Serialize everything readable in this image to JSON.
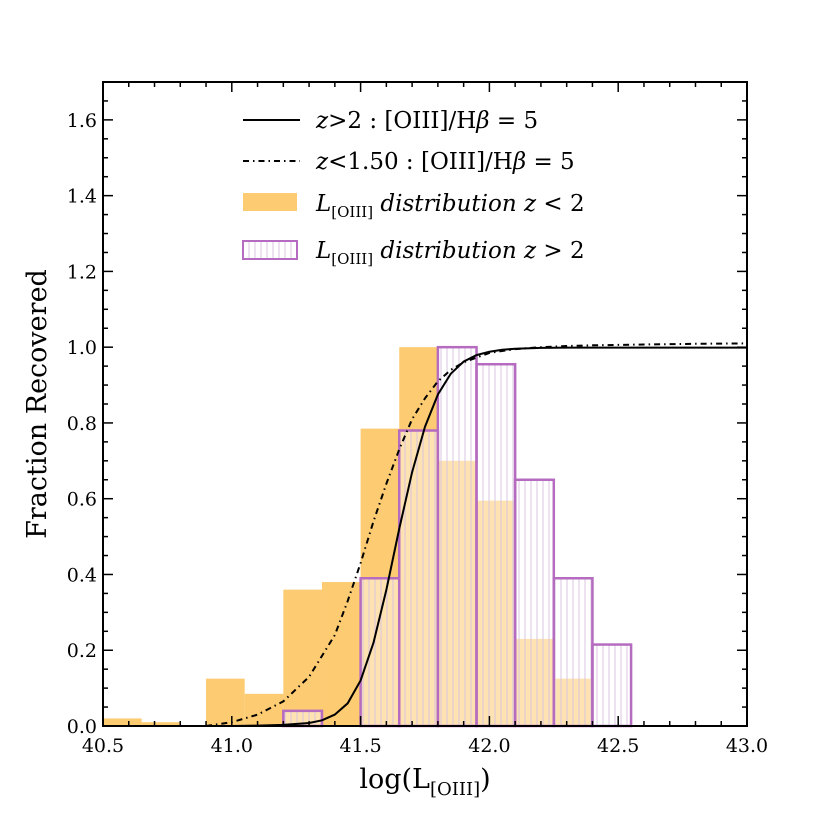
{
  "chart_data": {
    "type": "histogram+line",
    "title": "",
    "xlabel": "log(L",
    "xlabel_sub": "[OIII]",
    "xlabel_close": ")",
    "ylabel": "Fraction Recovered",
    "xlim": [
      40.5,
      43.0
    ],
    "ylim": [
      0.0,
      1.7
    ],
    "xticks": [
      40.5,
      41.0,
      41.5,
      42.0,
      42.5,
      43.0
    ],
    "xtick_labels": [
      "40.5",
      "41.0",
      "41.5",
      "42.0",
      "42.5",
      "43.0"
    ],
    "yticks": [
      0.0,
      0.2,
      0.4,
      0.6,
      0.8,
      1.0,
      1.2,
      1.4,
      1.6
    ],
    "ytick_labels": [
      "0.0",
      "0.2",
      "0.4",
      "0.6",
      "0.8",
      "1.0",
      "1.2",
      "1.4",
      "1.6"
    ],
    "bin_edges": [
      40.5,
      40.65,
      40.8,
      40.9,
      41.05,
      41.2,
      41.35,
      41.5,
      41.65,
      41.8,
      41.95,
      42.1,
      42.25,
      42.4,
      42.55
    ],
    "series": [
      {
        "name": "L_[OIII] distribution z < 2",
        "kind": "histogram",
        "color": "#fdcb71",
        "values": [
          0.02,
          0.01,
          0.0,
          0.125,
          0.085,
          0.36,
          0.38,
          0.785,
          1.0,
          0.7,
          0.595,
          0.23,
          0.125,
          0.0
        ]
      },
      {
        "name": "L_[OIII] distribution z > 2",
        "kind": "histogram",
        "edge_color": "#b56bbf",
        "values": [
          0.0,
          0.0,
          0.0,
          0.0,
          0.0,
          0.04,
          0.0,
          0.39,
          0.78,
          1.0,
          0.955,
          0.65,
          0.39,
          0.215
        ]
      },
      {
        "name": "z>2: [OIII]/Hβ = 5",
        "kind": "line",
        "style": "solid",
        "x": [
          40.9,
          41.0,
          41.1,
          41.2,
          41.3,
          41.35,
          41.4,
          41.45,
          41.5,
          41.55,
          41.6,
          41.65,
          41.7,
          41.75,
          41.8,
          41.85,
          41.9,
          41.95,
          42.0,
          42.05,
          42.1,
          42.2,
          42.3,
          42.4,
          42.6,
          42.8,
          43.0
        ],
        "y": [
          0.0,
          0.0,
          0.001,
          0.003,
          0.008,
          0.015,
          0.03,
          0.06,
          0.12,
          0.22,
          0.36,
          0.52,
          0.67,
          0.79,
          0.875,
          0.93,
          0.962,
          0.979,
          0.988,
          0.993,
          0.996,
          0.998,
          0.999,
          0.999,
          0.999,
          0.999,
          0.999
        ]
      },
      {
        "name": "z<1.50: [OIII]/Hβ = 5",
        "kind": "line",
        "style": "dashdot",
        "x": [
          40.9,
          41.0,
          41.1,
          41.2,
          41.3,
          41.4,
          41.45,
          41.5,
          41.55,
          41.6,
          41.65,
          41.7,
          41.75,
          41.8,
          41.85,
          41.9,
          42.0,
          42.1,
          42.2,
          42.3,
          42.4,
          42.6,
          42.8,
          43.0
        ],
        "y": [
          0.0,
          0.01,
          0.03,
          0.065,
          0.13,
          0.24,
          0.33,
          0.43,
          0.54,
          0.64,
          0.73,
          0.81,
          0.865,
          0.91,
          0.94,
          0.96,
          0.985,
          0.995,
          1.0,
          1.003,
          1.005,
          1.007,
          1.009,
          1.01
        ]
      }
    ],
    "legend": {
      "placement": "top-center",
      "entries": [
        {
          "prefix": "z",
          "middle": ">2 : [OIII]/H",
          "greek": "β",
          "suffix": " = 5"
        },
        {
          "prefix": "z",
          "middle": "<1.50 : [OIII]/H",
          "greek": "β",
          "suffix": " = 5"
        },
        {
          "prefix": "L",
          "sub": "[OIII]",
          "middle": " distribution ",
          "var": "z",
          "suffix": " < 2"
        },
        {
          "prefix": "L",
          "sub": "[OIII]",
          "middle": " distribution ",
          "var": "z",
          "suffix": " > 2"
        }
      ]
    }
  }
}
